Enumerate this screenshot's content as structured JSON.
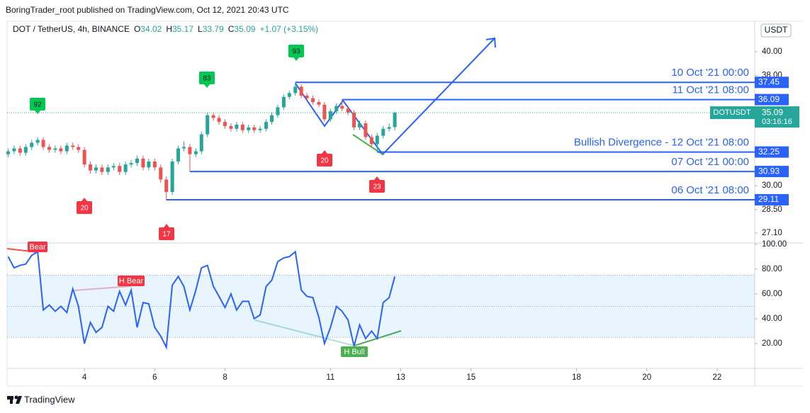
{
  "header": {
    "published": "BoringTrader_root published on TradingView.com, Oct 12, 2021 20:43 UTC",
    "symbol": "DOT / TetherUS, 4h, BINANCE",
    "ohlc_labels": [
      "O",
      "H",
      "L",
      "C"
    ],
    "change": "+1.07 (+3.15%)"
  },
  "chart_data": [
    {
      "type": "candlestick",
      "log_scale": true,
      "currency": "USDT",
      "ticker": "DOTUSDT",
      "countdown": "03:16:16",
      "up_color": "#26a69a",
      "down_color": "#ef5350",
      "x": [
        1.83,
        2,
        2.17,
        2.33,
        2.5,
        2.67,
        2.83,
        3,
        3.17,
        3.33,
        3.5,
        3.67,
        3.83,
        4,
        4.17,
        4.33,
        4.5,
        4.67,
        4.83,
        5,
        5.17,
        5.33,
        5.5,
        5.67,
        5.83,
        6,
        6.17,
        6.33,
        6.5,
        6.67,
        6.83,
        7,
        7.17,
        7.33,
        7.5,
        7.67,
        7.83,
        8,
        8.17,
        8.33,
        8.5,
        8.67,
        8.83,
        9,
        9.17,
        9.33,
        9.5,
        9.67,
        9.83,
        10,
        10.17,
        10.33,
        10.5,
        10.67,
        10.83,
        11,
        11.17,
        11.33,
        11.5,
        11.67,
        11.83,
        12,
        12.17,
        12.33,
        12.5,
        12.67,
        12.83
      ],
      "open": [
        32.1,
        32.3,
        32.5,
        32.2,
        32.6,
        32.9,
        33.1,
        32.6,
        32.4,
        32.5,
        32.3,
        32.7,
        32.6,
        32.4,
        31.4,
        31,
        31.2,
        30.9,
        31.2,
        31.3,
        30.9,
        31.4,
        31.5,
        31.8,
        31.2,
        31.6,
        31.2,
        30.4,
        29.6,
        31.6,
        32.5,
        32.6,
        32.1,
        32.3,
        33.5,
        34.9,
        34.7,
        34.4,
        34.1,
        33.9,
        34.2,
        33.8,
        34,
        33.8,
        33.9,
        34.4,
        34.9,
        35.5,
        36.3,
        36.6,
        37.1,
        36.4,
        36.2,
        35.9,
        35.7,
        34.6,
        35.2,
        35.6,
        35.4,
        35.1,
        34,
        34.3,
        33.3,
        32.8,
        33.4,
        33.9,
        34.02
      ],
      "high": [
        32.5,
        32.7,
        32.7,
        32.8,
        33.1,
        33.3,
        33.3,
        32.8,
        32.7,
        32.7,
        32.9,
        32.9,
        32.8,
        32.6,
        31.6,
        31.4,
        31.4,
        31.4,
        31.5,
        31.5,
        31.6,
        31.7,
        32,
        32,
        31.8,
        31.8,
        31.4,
        30.6,
        31.8,
        32.7,
        33,
        32.8,
        32.5,
        33.7,
        35.1,
        35.1,
        34.9,
        34.6,
        34.3,
        34.4,
        34.4,
        34.2,
        34.2,
        34.1,
        34.6,
        35.1,
        35.7,
        36.5,
        36.8,
        37.45,
        37.3,
        36.6,
        36.4,
        36.1,
        35.9,
        35.4,
        35.8,
        36.09,
        35.6,
        35.3,
        34.5,
        34.5,
        33.5,
        33.6,
        34.1,
        34.3,
        35.17
      ],
      "low": [
        31.9,
        32.1,
        32,
        32,
        32.4,
        32.7,
        32.4,
        32.2,
        32.2,
        32.1,
        32.1,
        32.4,
        32.2,
        31.2,
        30.8,
        30.8,
        30.7,
        30.7,
        31,
        30.7,
        30.7,
        31.2,
        31.3,
        31,
        31,
        31,
        30.2,
        29.11,
        29.4,
        31.4,
        32.3,
        30.93,
        31.9,
        32.1,
        33.3,
        34.5,
        34.2,
        33.9,
        33.7,
        33.7,
        33.6,
        33.6,
        33.6,
        33.6,
        33.7,
        34.2,
        34.7,
        35.3,
        36.1,
        36.4,
        36.2,
        36,
        35.7,
        35.5,
        34.4,
        34.4,
        35,
        35.2,
        34.9,
        33.8,
        33.8,
        33.1,
        32.6,
        32.25,
        33.2,
        33.7,
        33.79
      ],
      "close": [
        32.3,
        32.5,
        32.2,
        32.6,
        32.9,
        33.1,
        32.6,
        32.4,
        32.5,
        32.3,
        32.7,
        32.6,
        32.4,
        31.4,
        31,
        31.2,
        30.9,
        31.2,
        31.3,
        30.9,
        31.4,
        31.5,
        31.8,
        31.2,
        31.6,
        31.2,
        30.4,
        29.6,
        31.6,
        32.5,
        32.6,
        32.1,
        32.3,
        33.5,
        34.9,
        34.7,
        34.4,
        34.1,
        33.9,
        34.2,
        33.8,
        34,
        33.8,
        33.9,
        34.4,
        34.9,
        35.5,
        36.3,
        36.6,
        37.1,
        36.4,
        36.2,
        35.9,
        35.7,
        34.6,
        35.2,
        35.6,
        35.4,
        35.1,
        34,
        34.3,
        33.3,
        32.8,
        33.4,
        33.9,
        34.02,
        35.09
      ],
      "ylim": [
        26.53,
        42.7
      ],
      "yticks": [
        {
          "value": 40,
          "label": "40.00"
        },
        {
          "value": 38,
          "label": "38.00"
        },
        {
          "value": 30,
          "label": "30.00"
        },
        {
          "value": 28.5,
          "label": "28.50"
        },
        {
          "value": 27.1,
          "label": "27.10"
        }
      ],
      "xlim": [
        1.8,
        23.07
      ],
      "xticks": [
        4,
        6,
        8,
        11,
        13,
        15,
        18,
        20,
        22
      ],
      "levels": [
        {
          "value": 37.45,
          "label": "10 Oct '21 00:00",
          "x": 10
        },
        {
          "value": 36.09,
          "label": "11 Oct '21 08:00",
          "x": 11.33
        },
        {
          "value": 32.25,
          "label": "Bullish Divergence - 12 Oct '21 08:00",
          "x": 12.33
        },
        {
          "value": 30.93,
          "label": "07 Oct '21 00:00",
          "x": 7
        },
        {
          "value": 29.11,
          "label": "06 Oct '21 08:00",
          "x": 6.33
        }
      ],
      "pivot_labels": [
        "92",
        "83",
        "93",
        "20",
        "17",
        "20",
        "23"
      ]
    },
    {
      "type": "line",
      "color": "#2962ff",
      "x": [
        1.83,
        2,
        2.17,
        2.33,
        2.5,
        2.67,
        2.83,
        3,
        3.17,
        3.33,
        3.5,
        3.67,
        3.83,
        4,
        4.17,
        4.33,
        4.5,
        4.67,
        4.83,
        5,
        5.17,
        5.33,
        5.5,
        5.67,
        5.83,
        6,
        6.17,
        6.33,
        6.5,
        6.67,
        6.83,
        7,
        7.17,
        7.33,
        7.5,
        7.67,
        7.83,
        8,
        8.17,
        8.33,
        8.5,
        8.67,
        8.83,
        9,
        9.17,
        9.33,
        9.5,
        9.67,
        9.83,
        10,
        10.17,
        10.33,
        10.5,
        10.67,
        10.83,
        11,
        11.17,
        11.33,
        11.5,
        11.67,
        11.83,
        12,
        12.17,
        12.33,
        12.5,
        12.67,
        12.83
      ],
      "values": [
        90,
        81,
        83,
        84,
        91,
        94,
        47,
        51,
        46,
        50,
        45,
        64,
        50,
        20,
        37,
        29,
        33,
        50,
        46,
        62,
        51,
        63,
        33,
        53,
        52,
        33,
        26,
        17,
        67,
        74,
        66,
        47,
        63,
        81,
        83,
        66,
        58,
        49,
        60,
        47,
        54,
        54,
        40,
        43,
        66,
        71,
        86,
        89,
        90,
        94,
        63,
        58,
        57,
        41,
        20,
        33,
        50,
        46,
        39,
        18,
        35,
        24,
        30,
        24,
        53,
        57,
        74
      ],
      "ylim": [
        0,
        101
      ],
      "yticks": [
        {
          "value": 100,
          "label": "100.00"
        },
        {
          "value": 80,
          "label": "80.00"
        },
        {
          "value": 60,
          "label": "60.00"
        },
        {
          "value": 40,
          "label": "40.00"
        },
        {
          "value": 20,
          "label": "20.00"
        }
      ],
      "bands": [
        25,
        50,
        75
      ],
      "divergence_labels": [
        "Bear",
        "H Bear",
        "H Bull"
      ]
    }
  ],
  "footer": {
    "brand": "TradingView"
  }
}
